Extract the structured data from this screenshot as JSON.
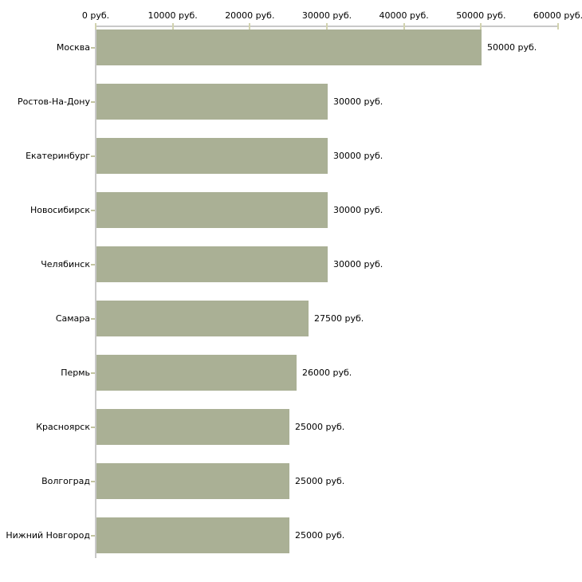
{
  "chart_data": {
    "type": "bar",
    "orientation": "horizontal",
    "title": "",
    "xlabel": "",
    "ylabel": "",
    "unit": "руб.",
    "categories": [
      "Москва",
      "Ростов-На-Дону",
      "Екатеринбург",
      "Новосибирск",
      "Челябинск",
      "Самара",
      "Пермь",
      "Красноярск",
      "Волгоград",
      "Нижний Новгород"
    ],
    "values": [
      50000,
      30000,
      30000,
      30000,
      30000,
      27500,
      26000,
      25000,
      25000,
      25000
    ],
    "value_labels": [
      "50000 руб.",
      "30000 руб.",
      "30000 руб.",
      "30000 руб.",
      "30000 руб.",
      "27500 руб.",
      "26000 руб.",
      "25000 руб.",
      "25000 руб.",
      "25000 руб."
    ],
    "x_axis": {
      "position": "top",
      "min": 0,
      "max": 60000,
      "ticks": [
        0,
        10000,
        20000,
        30000,
        40000,
        50000,
        60000
      ],
      "tick_labels": [
        "0 руб.",
        "10000 руб.",
        "20000 руб.",
        "30000 руб.",
        "40000 руб.",
        "50000 руб.",
        "60000 руб."
      ]
    },
    "grid": false,
    "legend": false
  },
  "style": {
    "bar_color": "#aab095",
    "axis_line_color": "#c9c9c9",
    "top_tick_color": "#d2d3af",
    "row_tick_color": "#c2c4a0",
    "text_color": "#000000",
    "background_color": "#ffffff"
  }
}
